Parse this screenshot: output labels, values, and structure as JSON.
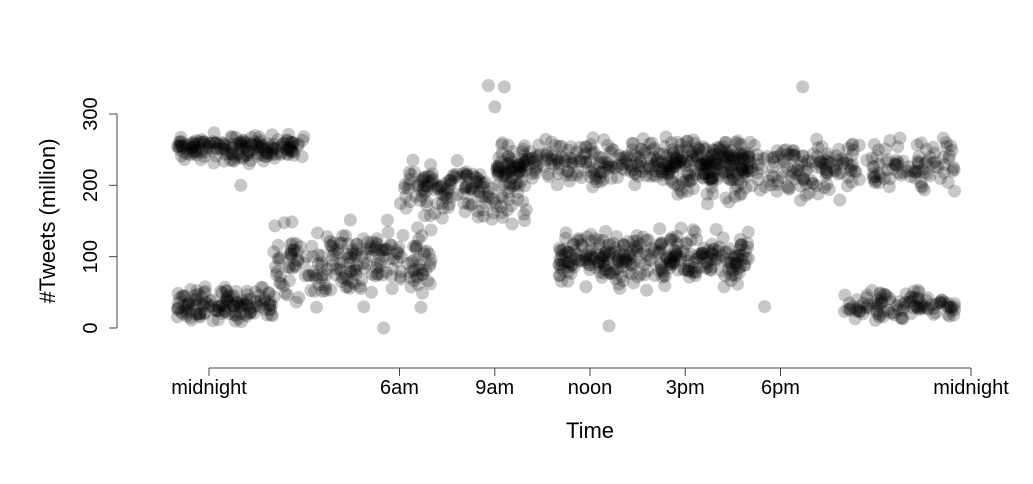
{
  "chart_data": {
    "type": "scatter",
    "title": "",
    "xlabel": "Time",
    "ylabel": "#Tweets (million)",
    "x_ticks": [
      {
        "value": 0,
        "label": "midnight"
      },
      {
        "value": 6,
        "label": "6am"
      },
      {
        "value": 9,
        "label": "9am"
      },
      {
        "value": 12,
        "label": "noon"
      },
      {
        "value": 15,
        "label": "3pm"
      },
      {
        "value": 18,
        "label": "6pm"
      },
      {
        "value": 24,
        "label": "midnight"
      }
    ],
    "y_ticks": [
      0,
      100,
      200,
      300
    ],
    "xlim": [
      -1.0,
      24.0
    ],
    "ylim": [
      -55,
      345
    ],
    "grid": false,
    "legend": "none",
    "point_color": "#000000",
    "point_opacity": 0.22,
    "point_count": 2000,
    "clusters": [
      {
        "x_range": [
          -1.0,
          3.0
        ],
        "y_range": [
          225,
          280
        ],
        "count": 180
      },
      {
        "x_range": [
          -1.0,
          2.0
        ],
        "y_range": [
          0,
          70
        ],
        "count": 140
      },
      {
        "x_range": [
          2.0,
          7.0
        ],
        "y_range": [
          20,
          160
        ],
        "count": 220
      },
      {
        "x_range": [
          6.0,
          10.0
        ],
        "y_range": [
          140,
          250
        ],
        "count": 160
      },
      {
        "x_range": [
          9.0,
          17.0
        ],
        "y_range": [
          190,
          275
        ],
        "count": 330
      },
      {
        "x_range": [
          11.0,
          17.0
        ],
        "y_range": [
          45,
          150
        ],
        "count": 320
      },
      {
        "x_range": [
          14.0,
          23.5
        ],
        "y_range": [
          170,
          280
        ],
        "count": 340
      },
      {
        "x_range": [
          20.0,
          23.5
        ],
        "y_range": [
          5,
          60
        ],
        "count": 110
      }
    ],
    "outliers": [
      {
        "x": 8.8,
        "y": 340
      },
      {
        "x": 9.3,
        "y": 338
      },
      {
        "x": 18.7,
        "y": 338
      },
      {
        "x": 9.0,
        "y": 310
      },
      {
        "x": 5.5,
        "y": 0
      },
      {
        "x": 12.6,
        "y": 3
      },
      {
        "x": 17.5,
        "y": 30
      },
      {
        "x": 1.0,
        "y": 200
      }
    ]
  }
}
